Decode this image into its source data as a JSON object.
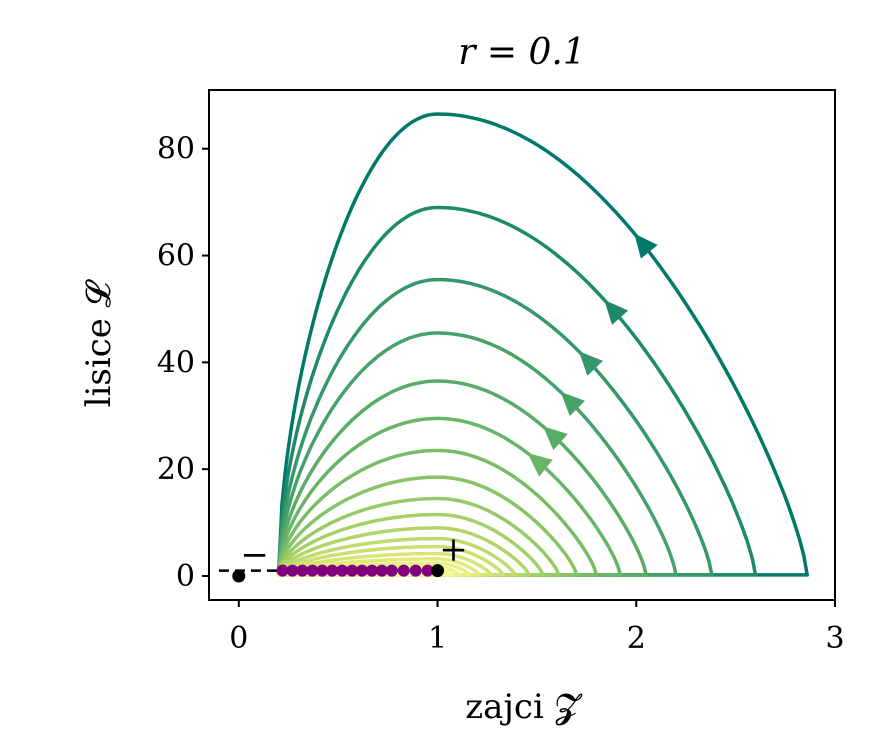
{
  "chart_data": {
    "type": "line",
    "title": "r = 0.1",
    "xlabel": "zajci 𝓩",
    "ylabel": "lisice 𝓛",
    "xlim": [
      -0.15,
      3.0
    ],
    "ylim": [
      -4.5,
      91
    ],
    "xticks": [
      0,
      1,
      2,
      3
    ],
    "yticks": [
      0,
      20,
      40,
      60,
      80
    ],
    "grid": false,
    "legend": "none",
    "colormap": "viridis-green-yellow",
    "series": [
      {
        "z_right": 2.86,
        "y_peak": 86.5,
        "color": "#00796b",
        "arrow": true
      },
      {
        "z_right": 2.6,
        "y_peak": 69.0,
        "color": "#1f8a6a",
        "arrow": true
      },
      {
        "z_right": 2.38,
        "y_peak": 55.5,
        "color": "#35976a",
        "arrow": true
      },
      {
        "z_right": 2.2,
        "y_peak": 45.5,
        "color": "#47a269",
        "arrow": true
      },
      {
        "z_right": 2.05,
        "y_peak": 36.5,
        "color": "#58ac68",
        "arrow": true
      },
      {
        "z_right": 1.92,
        "y_peak": 29.5,
        "color": "#68b567",
        "arrow": true
      },
      {
        "z_right": 1.8,
        "y_peak": 23.5,
        "color": "#78bd66",
        "arrow": false
      },
      {
        "z_right": 1.7,
        "y_peak": 18.5,
        "color": "#88c466",
        "arrow": false
      },
      {
        "z_right": 1.61,
        "y_peak": 14.5,
        "color": "#97ca67",
        "arrow": false
      },
      {
        "z_right": 1.53,
        "y_peak": 11.5,
        "color": "#a5d068",
        "arrow": false
      },
      {
        "z_right": 1.46,
        "y_peak": 9.0,
        "color": "#b2d56a",
        "arrow": false
      },
      {
        "z_right": 1.39,
        "y_peak": 7.0,
        "color": "#bfdb6d",
        "arrow": false
      },
      {
        "z_right": 1.33,
        "y_peak": 5.5,
        "color": "#cbe071",
        "arrow": false
      },
      {
        "z_right": 1.27,
        "y_peak": 4.2,
        "color": "#d6e676",
        "arrow": false
      },
      {
        "z_right": 1.21,
        "y_peak": 3.2,
        "color": "#e0eb7c",
        "arrow": false
      },
      {
        "z_right": 1.16,
        "y_peak": 2.4,
        "color": "#e9f083",
        "arrow": false
      },
      {
        "z_right": 1.11,
        "y_peak": 1.7,
        "color": "#f1f48b",
        "arrow": false
      },
      {
        "z_right": 1.07,
        "y_peak": 1.1,
        "color": "#f8f894",
        "arrow": false
      }
    ],
    "curve_left_z": 0.2,
    "start_points": {
      "z": [
        0.22,
        0.27,
        0.32,
        0.37,
        0.42,
        0.47,
        0.52,
        0.57,
        0.62,
        0.67,
        0.72,
        0.77,
        0.83,
        0.89,
        0.95
      ],
      "y": 1,
      "color": "#800080"
    },
    "dashed_line": {
      "z": [
        -0.1,
        1.0
      ],
      "y": 1
    },
    "fixed_points": [
      {
        "z": 0,
        "y": 0,
        "label": "−"
      },
      {
        "z": 1,
        "y": 1,
        "label": "+"
      }
    ]
  }
}
